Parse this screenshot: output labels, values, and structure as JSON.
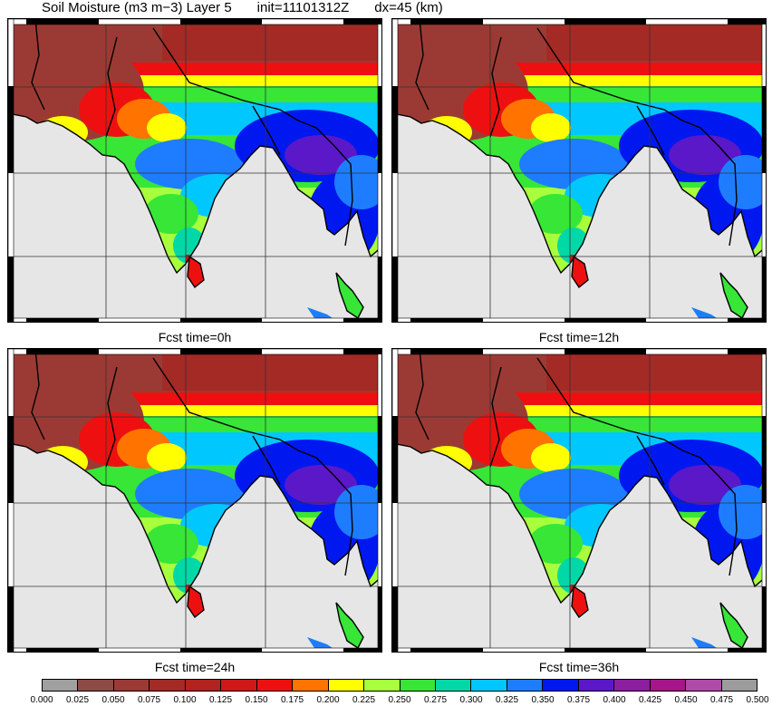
{
  "header": {
    "variable": "Soil Moisture (m3 m−3) Layer 5",
    "init": "init=11101312Z",
    "dx": "dx=45 (km)"
  },
  "panels": [
    {
      "caption": "",
      "hidden_caption": true
    },
    {
      "caption": "Fcst time=0h"
    },
    {
      "caption": "Fcst time=12h"
    },
    {
      "caption": "Fcst time=24h"
    },
    {
      "caption": "Fcst time=36h"
    }
  ],
  "captions": [
    "Fcst time=0h",
    "Fcst time=12h",
    "Fcst time=24h",
    "Fcst time=36h"
  ],
  "colorbar": {
    "colors": [
      "#a0a0a0",
      "#8c4b45",
      "#9b3a34",
      "#a42a26",
      "#b2221e",
      "#d01818",
      "#ee1010",
      "#ff7300",
      "#ffff00",
      "#a8ff3c",
      "#37e637",
      "#00d8a8",
      "#00c8ff",
      "#1e7dff",
      "#0018f0",
      "#5a18c8",
      "#8c1ea0",
      "#a6168a",
      "#b04aa8",
      "#9c9c9c"
    ],
    "labels": [
      "0.000",
      "0.025",
      "0.050",
      "0.075",
      "0.100",
      "0.125",
      "0.150",
      "0.175",
      "0.200",
      "0.225",
      "0.250",
      "0.275",
      "0.300",
      "0.325",
      "0.350",
      "0.375",
      "0.400",
      "0.425",
      "0.450",
      "0.475",
      "0.500"
    ]
  }
}
